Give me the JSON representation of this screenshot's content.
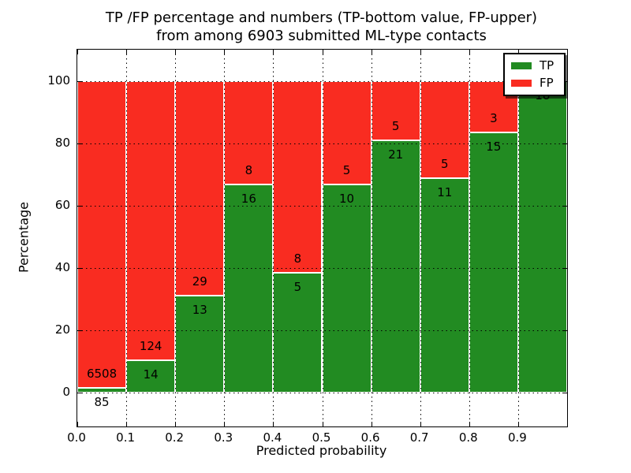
{
  "title": {
    "line1": "TP /FP percentage and numbers (TP-bottom value, FP-upper)",
    "line2": "from among 6903 submitted ML-type contacts"
  },
  "legend": {
    "items": [
      {
        "label": "TP",
        "color": "#228b22"
      },
      {
        "label": "FP",
        "color": "#f92c21"
      }
    ]
  },
  "chart_data": {
    "type": "bar",
    "stacked": true,
    "title": "TP /FP percentage and numbers (TP-bottom value, FP-upper) from among 6903 submitted ML-type contacts",
    "xlabel": "Predicted probability",
    "ylabel": "Percentage",
    "total_contacts": 6903,
    "bin_width": 0.1,
    "categories": [
      "0.0",
      "0.1",
      "0.2",
      "0.3",
      "0.4",
      "0.5",
      "0.6",
      "0.7",
      "0.8",
      "0.9"
    ],
    "series": [
      {
        "name": "TP",
        "color": "#228b22",
        "counts": [
          85,
          14,
          13,
          16,
          5,
          10,
          21,
          11,
          15,
          18
        ]
      },
      {
        "name": "FP",
        "color": "#f92c21",
        "counts": [
          6508,
          124,
          29,
          8,
          8,
          5,
          5,
          5,
          3,
          0
        ]
      }
    ],
    "tp_percent": [
      1.29,
      10.14,
      30.95,
      66.67,
      38.46,
      66.67,
      80.77,
      68.75,
      83.33,
      100.0
    ],
    "yticks": [
      0,
      20,
      40,
      60,
      80,
      100
    ],
    "xticks": [
      "0.0",
      "0.1",
      "0.2",
      "0.3",
      "0.4",
      "0.5",
      "0.6",
      "0.7",
      "0.8",
      "0.9"
    ],
    "ylim": [
      -11,
      110
    ],
    "xlim": [
      0.0,
      1.0
    ],
    "grid": "dotted",
    "legend_position": "upper right"
  }
}
